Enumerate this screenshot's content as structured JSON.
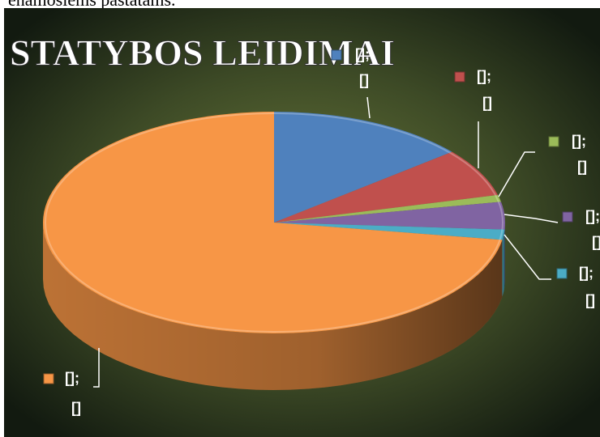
{
  "header_text": "enamosiems pastatams.",
  "chart_data": {
    "type": "pie3d",
    "title": "STATYBOS LEIDIMAI",
    "values": [
      14,
      7,
      1,
      4,
      1.5,
      72.5
    ],
    "colors": [
      "#4f81bd",
      "#c0504d",
      "#9bbb59",
      "#8064a2",
      "#4bacc6",
      "#f79646"
    ],
    "data_labels": [
      [
        "[];",
        "[]"
      ],
      [
        "[];",
        "[]"
      ],
      [
        "[];",
        "[]"
      ],
      [
        "[];",
        "[]"
      ],
      [
        "[];",
        "[]"
      ],
      [
        "[];",
        "[]"
      ]
    ]
  }
}
